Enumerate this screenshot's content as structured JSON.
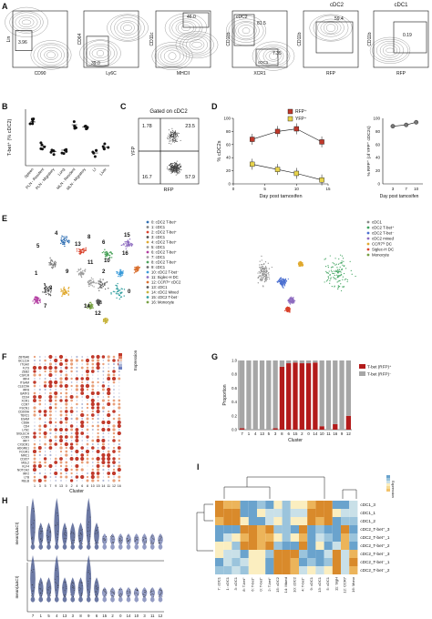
{
  "panels": {
    "A": {
      "label": "A",
      "header_cdc2": "cDC2",
      "header_cdc1": "cDC1",
      "plots": [
        {
          "x": "CD90",
          "y": "Lin",
          "gate_val": "3.96"
        },
        {
          "x": "Ly6C",
          "y": "CD64",
          "gate_val": "39.0"
        },
        {
          "x": "MHCII",
          "y": "CD11c",
          "gate_val": "46.0"
        },
        {
          "x": "XCR1",
          "y": "CD11b",
          "gate_top_label": "cDC2",
          "gate_top_val": "81.5",
          "gate_bottom_label": "cDC1",
          "gate_bottom_val": "7.35"
        },
        {
          "x": "RFP",
          "y": "CD11b",
          "gate_val": "59.4"
        },
        {
          "x": "RFP",
          "y": "CD11b",
          "gate_val": "0.19"
        }
      ]
    },
    "B": {
      "label": "B",
      "ylabel": "T-bet⁺ (% cDC2)",
      "categories": [
        "Spleen",
        "PLN - Resident",
        "PLN - Migratory",
        "Lung",
        "MLN - Resident",
        "MLN - Migratory",
        "LI",
        "Liver"
      ]
    },
    "C": {
      "label": "C",
      "title": "Gated on cDC2",
      "xlabel": "RFP",
      "ylabel": "YFP",
      "q_tl": "1.78",
      "q_tr": "23.5",
      "q_bl": "16.7",
      "q_br": "57.9"
    },
    "D": {
      "label": "D",
      "ylabel": "% cDC2s",
      "xlabel": "Day post tamoxifen",
      "legend_rfp": "RFP⁺",
      "legend_yfp": "YFP⁺",
      "yticks": [
        "0",
        "20",
        "40",
        "60",
        "80",
        "100"
      ],
      "xticks": [
        "0",
        "5",
        "10",
        "15"
      ],
      "right_ylabel": "% RFP⁺ (of YFP⁺ cDC2s)",
      "right_xlabel": "Day post tamoxifen",
      "right_yticks": [
        "0",
        "20",
        "40",
        "60",
        "80",
        "100"
      ],
      "right_xticks": [
        "3",
        "7",
        "10"
      ]
    },
    "E": {
      "label": "E",
      "legend_left": [
        "0: cDC2 T-bet⁺",
        "1: cDC1",
        "2: cDC2 T-bet⁺",
        "3: cDC1",
        "4: cDC2 T-bet⁺",
        "5: cDC1",
        "6: cDC2 T-bet⁺",
        "7: cDC1",
        "8: cDC2 T-bet⁺",
        "9: cDC1",
        "10: cDC2 T-bet⁻",
        "11: Siglec-H DC",
        "12: CCR7ʰⁱ cDC2",
        "13: cDC1",
        "14: cDC2 Mixed",
        "15: cDC2 T-bet⁻",
        "16: Monocyte"
      ],
      "legend_right": [
        "cDC1",
        "cDC2 T-bet⁺",
        "cDC2 T-bet⁻",
        "cDC2 mixed",
        "CCR7ʰⁱ DC",
        "Siglec-H DC",
        "Monocyte"
      ],
      "cluster_nums": [
        "4",
        "5",
        "13",
        "1",
        "3",
        "9",
        "7",
        "8",
        "2",
        "10",
        "11",
        "6",
        "15",
        "16",
        "12",
        "0",
        "14"
      ]
    },
    "F": {
      "label": "F",
      "xlabel": "Cluster",
      "legend_title": "Expression",
      "genes": [
        "ZBTB46",
        "BCL11A",
        "ITGAX",
        "FLT3",
        "ZEB2",
        "CSF1R",
        "IRF4",
        "ITGAM",
        "CLEC9A",
        "IRF8",
        "BATF3",
        "CD24",
        "XCR1",
        "CCR7",
        "FSCN1",
        "CD209A",
        "TBX21",
        "ESAM",
        "CD8A",
        "CD4",
        "LY6C",
        "SIGLECH",
        "CCR9",
        "IRF7",
        "CX3CR1",
        "ADGRE1",
        "FCGR1",
        "MRC1",
        "CD207",
        "MGL2",
        "KLF4",
        "NOTCH2",
        "IRF2",
        "LTB",
        "RELB"
      ],
      "cluster_order": [
        "1",
        "3",
        "5",
        "7",
        "9",
        "13",
        "0",
        "2",
        "4",
        "6",
        "8",
        "10",
        "15",
        "14",
        "11",
        "12",
        "16"
      ]
    },
    "G": {
      "label": "G",
      "ylabel": "Proportion",
      "xlabel": "Cluster",
      "legend_pos": "T-bet (RFP)⁺",
      "legend_neg": "T-bet (RFP)⁻",
      "yticks": [
        "0.0",
        "0.2",
        "0.4",
        "0.6",
        "0.8",
        "1.0"
      ]
    },
    "H": {
      "label": "H",
      "ylabel_top": "mean(ΔΔCt)",
      "ylabel_bottom": "mean(ΔΔCt)",
      "xlabel": "Cluster",
      "clusters": [
        "7",
        "1",
        "5",
        "4",
        "13",
        "3",
        "8",
        "9",
        "6",
        "15",
        "2",
        "0",
        "14",
        "10",
        "3",
        "11",
        "12"
      ]
    },
    "I": {
      "label": "I",
      "legend_title": "Expression",
      "rows": [
        "cDC1_3",
        "cDC1_1",
        "cDC1_2",
        "cDC2_T-bet⁺_3",
        "cDC2_T-bet⁺_1",
        "cDC2_T-bet⁺_2",
        "cDC2_T-bet⁻_3",
        "cDC2_T-bet⁻_1",
        "cDC2_T-bet⁻_2"
      ],
      "cols": [
        "7: cDC1",
        "1: cDC1",
        "3: cDC1",
        "8: T-bet⁺",
        "6: T-bet⁺",
        "0: T-bet⁺",
        "2: T-bet⁺",
        "15: cDC2",
        "14: Mixed",
        "10: cDC2",
        "4: T-bet⁺",
        "9: cDC1",
        "13: cDC1",
        "5: cDC1",
        "11: SigH",
        "12: CCR7",
        "16: Mono"
      ]
    }
  },
  "chart_data": [
    {
      "type": "line",
      "title": "",
      "xlabel": "Day post tamoxifen",
      "ylabel": "% cDC2s",
      "ylim": [
        0,
        100
      ],
      "xlim": [
        0,
        15
      ],
      "series": [
        {
          "name": "RFP⁺",
          "x": [
            3,
            7,
            10,
            14
          ],
          "y": [
            68,
            80,
            84,
            64
          ]
        },
        {
          "name": "YFP⁺",
          "x": [
            3,
            7,
            10,
            14
          ],
          "y": [
            30,
            22,
            16,
            6
          ]
        }
      ]
    },
    {
      "type": "line",
      "xlabel": "Day post tamoxifen",
      "ylabel": "% RFP⁺ (of YFP⁺ cDC2s)",
      "ylim": [
        0,
        100
      ],
      "series": [
        {
          "x": [
            3,
            7,
            10
          ],
          "y": [
            88,
            90,
            94
          ]
        }
      ]
    },
    {
      "type": "bar",
      "xlabel": "Cluster",
      "ylabel": "Proportion",
      "categories": [
        "7",
        "1",
        "4",
        "13",
        "5",
        "3",
        "8",
        "6",
        "15",
        "2",
        "0",
        "14",
        "10",
        "11",
        "16",
        "9",
        "12"
      ],
      "series": [
        {
          "name": "T-bet (RFP)⁺",
          "values": [
            0.02,
            0.0,
            0.0,
            0.0,
            0.0,
            0.02,
            0.91,
            0.96,
            0.97,
            0.96,
            0.96,
            0.97,
            0.05,
            0.0,
            0.08,
            0.0,
            0.2
          ]
        },
        {
          "name": "T-bet (RFP)⁻",
          "values": [
            0.98,
            1.0,
            1.0,
            1.0,
            1.0,
            0.98,
            0.09,
            0.04,
            0.03,
            0.04,
            0.04,
            0.03,
            0.95,
            1.0,
            0.92,
            1.0,
            0.8
          ]
        }
      ],
      "ylim": [
        0,
        1
      ]
    },
    {
      "type": "scatter",
      "xlabel": "",
      "ylabel": "T-bet⁺ (% cDC2)",
      "categories": [
        "Spleen",
        "PLN - Resident",
        "PLN - Migratory",
        "Lung",
        "MLN - Resident",
        "MLN - Migratory",
        "LI",
        "Liver"
      ],
      "values": [
        62,
        28,
        20,
        22,
        58,
        55,
        18,
        26
      ]
    }
  ]
}
